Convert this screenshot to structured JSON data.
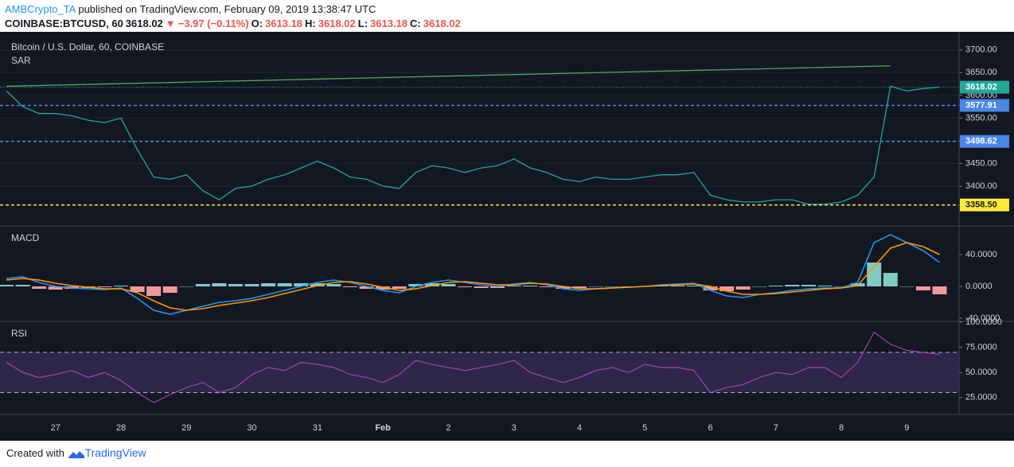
{
  "header": {
    "author": "AMBCrypto_TA",
    "published": "published on TradingView.com, February 09, 2019 13:38:47 UTC",
    "symbol": "COINBASE:BTCUSD, 60",
    "last": 3618.02,
    "change": "−3.97 (−0.11%)",
    "ohlc": [
      {
        "label": "O:",
        "value": 3613.18
      },
      {
        "label": "H:",
        "value": 3618.02
      },
      {
        "label": "L:",
        "value": 3613.18
      },
      {
        "label": "C:",
        "value": 3618.02
      }
    ]
  },
  "chart_data": [
    {
      "type": "line",
      "title": "Bitcoin / U.S. Dollar, 60, COINBASE",
      "indicator": "SAR",
      "color": "#26a69a",
      "values": [
        3610,
        3575,
        3560,
        3560,
        3555,
        3545,
        3540,
        3550,
        3480,
        3420,
        3415,
        3425,
        3390,
        3370,
        3395,
        3400,
        3415,
        3425,
        3440,
        3455,
        3440,
        3420,
        3415,
        3400,
        3395,
        3430,
        3445,
        3440,
        3430,
        3440,
        3445,
        3460,
        3440,
        3430,
        3415,
        3410,
        3420,
        3415,
        3415,
        3420,
        3425,
        3425,
        3430,
        3380,
        3370,
        3365,
        3365,
        3370,
        3370,
        3360,
        3360,
        3365,
        3380,
        3420,
        3620,
        3610,
        3615,
        3618
      ],
      "trendline": {
        "color": "#4caf50",
        "values": [
          3620,
          3665
        ]
      },
      "levels": [
        {
          "value": 3618.02,
          "label": "3618.02",
          "color": "#26a69a",
          "style": "dotted"
        },
        {
          "value": 3577.91,
          "label": "3577.91",
          "color": "#4a86e8",
          "style": "dashed"
        },
        {
          "value": 3498.62,
          "label": "3498.62",
          "color": "#4a86e8",
          "style": "dashed"
        },
        {
          "value": 3358.5,
          "label": "3358.50",
          "color": "#ffeb3b",
          "style": "dashed"
        }
      ],
      "ylim": [
        3314,
        3740
      ],
      "yticks": [
        {
          "value": 3400,
          "label": "3400.00"
        },
        {
          "value": 3450,
          "label": "3450.00"
        },
        {
          "value": 3500,
          "label": "3500.00"
        },
        {
          "value": 3550,
          "label": "3550.00"
        },
        {
          "value": 3600,
          "label": "3600.00"
        },
        {
          "value": 3650,
          "label": "3650.00"
        },
        {
          "value": 3700,
          "label": "3700.00"
        }
      ],
      "grid": true
    },
    {
      "type": "macd",
      "title": "MACD",
      "series": [
        {
          "kind": "bar",
          "color": "#80cbc4",
          "negative_color": "#ef9a9a",
          "values": [
            2,
            2,
            -3,
            -4,
            -3,
            -2,
            -1,
            1,
            -7,
            -12,
            -8,
            0,
            3,
            4,
            3,
            3,
            4,
            4,
            4,
            4,
            3,
            -1,
            -3,
            -4,
            -3,
            3,
            4,
            3,
            -1,
            -2,
            -2,
            1,
            1,
            -1,
            -3,
            -2,
            0,
            0,
            0,
            0,
            1,
            1,
            1,
            -5,
            -6,
            -4,
            0,
            1,
            2,
            2,
            1,
            0,
            4,
            30,
            17,
            0,
            -5,
            -10
          ]
        },
        {
          "kind": "line",
          "color": "#2196f3",
          "values": [
            10,
            12,
            5,
            0,
            -2,
            -3,
            -4,
            -2,
            -15,
            -30,
            -35,
            -30,
            -25,
            -20,
            -18,
            -15,
            -10,
            -5,
            0,
            5,
            8,
            5,
            0,
            -5,
            -8,
            0,
            5,
            8,
            5,
            2,
            0,
            3,
            5,
            2,
            -3,
            -5,
            -3,
            -2,
            -1,
            0,
            2,
            3,
            4,
            -5,
            -12,
            -14,
            -10,
            -8,
            -5,
            -3,
            -2,
            -2,
            5,
            55,
            65,
            55,
            45,
            30
          ]
        },
        {
          "kind": "line",
          "color": "#ff9800",
          "values": [
            8,
            10,
            8,
            4,
            1,
            -1,
            -3,
            -3,
            -8,
            -18,
            -27,
            -30,
            -28,
            -24,
            -21,
            -18,
            -14,
            -9,
            -4,
            1,
            5,
            6,
            3,
            -1,
            -5,
            -3,
            1,
            5,
            6,
            4,
            2,
            2,
            4,
            3,
            0,
            -3,
            -3,
            -2,
            -1,
            0,
            1,
            2,
            3,
            0,
            -6,
            -10,
            -10,
            -9,
            -7,
            -5,
            -3,
            -2,
            1,
            25,
            48,
            55,
            50,
            40
          ]
        }
      ],
      "ylim": [
        -43,
        75
      ],
      "yticks": [
        {
          "value": -40,
          "label": "-40.0000"
        },
        {
          "value": 0,
          "label": "0.0000"
        },
        {
          "value": 40,
          "label": "40.0000"
        }
      ]
    },
    {
      "type": "rsi",
      "title": "RSI",
      "color": "#ab47bc",
      "band": [
        30,
        70
      ],
      "band_color": "rgba(126,87,194,0.25)",
      "categories": [
        null,
        null,
        null,
        "27",
        null,
        null,
        null,
        "28",
        null,
        null,
        null,
        "29",
        null,
        null,
        null,
        "30",
        null,
        null,
        null,
        "31",
        null,
        null,
        null,
        "Feb",
        null,
        null,
        null,
        "2",
        null,
        null,
        null,
        "3",
        null,
        null,
        null,
        "4",
        null,
        null,
        null,
        "5",
        null,
        null,
        null,
        "6",
        null,
        null,
        null,
        "7",
        null,
        null,
        null,
        "8",
        null,
        null,
        null,
        "9",
        null,
        null
      ],
      "values": [
        60,
        50,
        45,
        48,
        52,
        45,
        50,
        42,
        30,
        20,
        28,
        35,
        40,
        30,
        35,
        48,
        55,
        52,
        60,
        58,
        55,
        48,
        45,
        40,
        48,
        62,
        58,
        55,
        52,
        55,
        58,
        62,
        50,
        45,
        40,
        45,
        52,
        55,
        50,
        58,
        55,
        55,
        52,
        30,
        35,
        38,
        45,
        50,
        48,
        55,
        55,
        45,
        60,
        90,
        78,
        72,
        70,
        68
      ],
      "ylim": [
        9,
        100
      ],
      "yticks": [
        {
          "value": 25,
          "label": "25.0000"
        },
        {
          "value": 50,
          "label": "50.0000"
        },
        {
          "value": 75,
          "label": "75.0000"
        },
        {
          "value": 100,
          "label": "100.0000"
        }
      ]
    }
  ],
  "footer": {
    "created": "Created with",
    "brand": "TradingView"
  }
}
